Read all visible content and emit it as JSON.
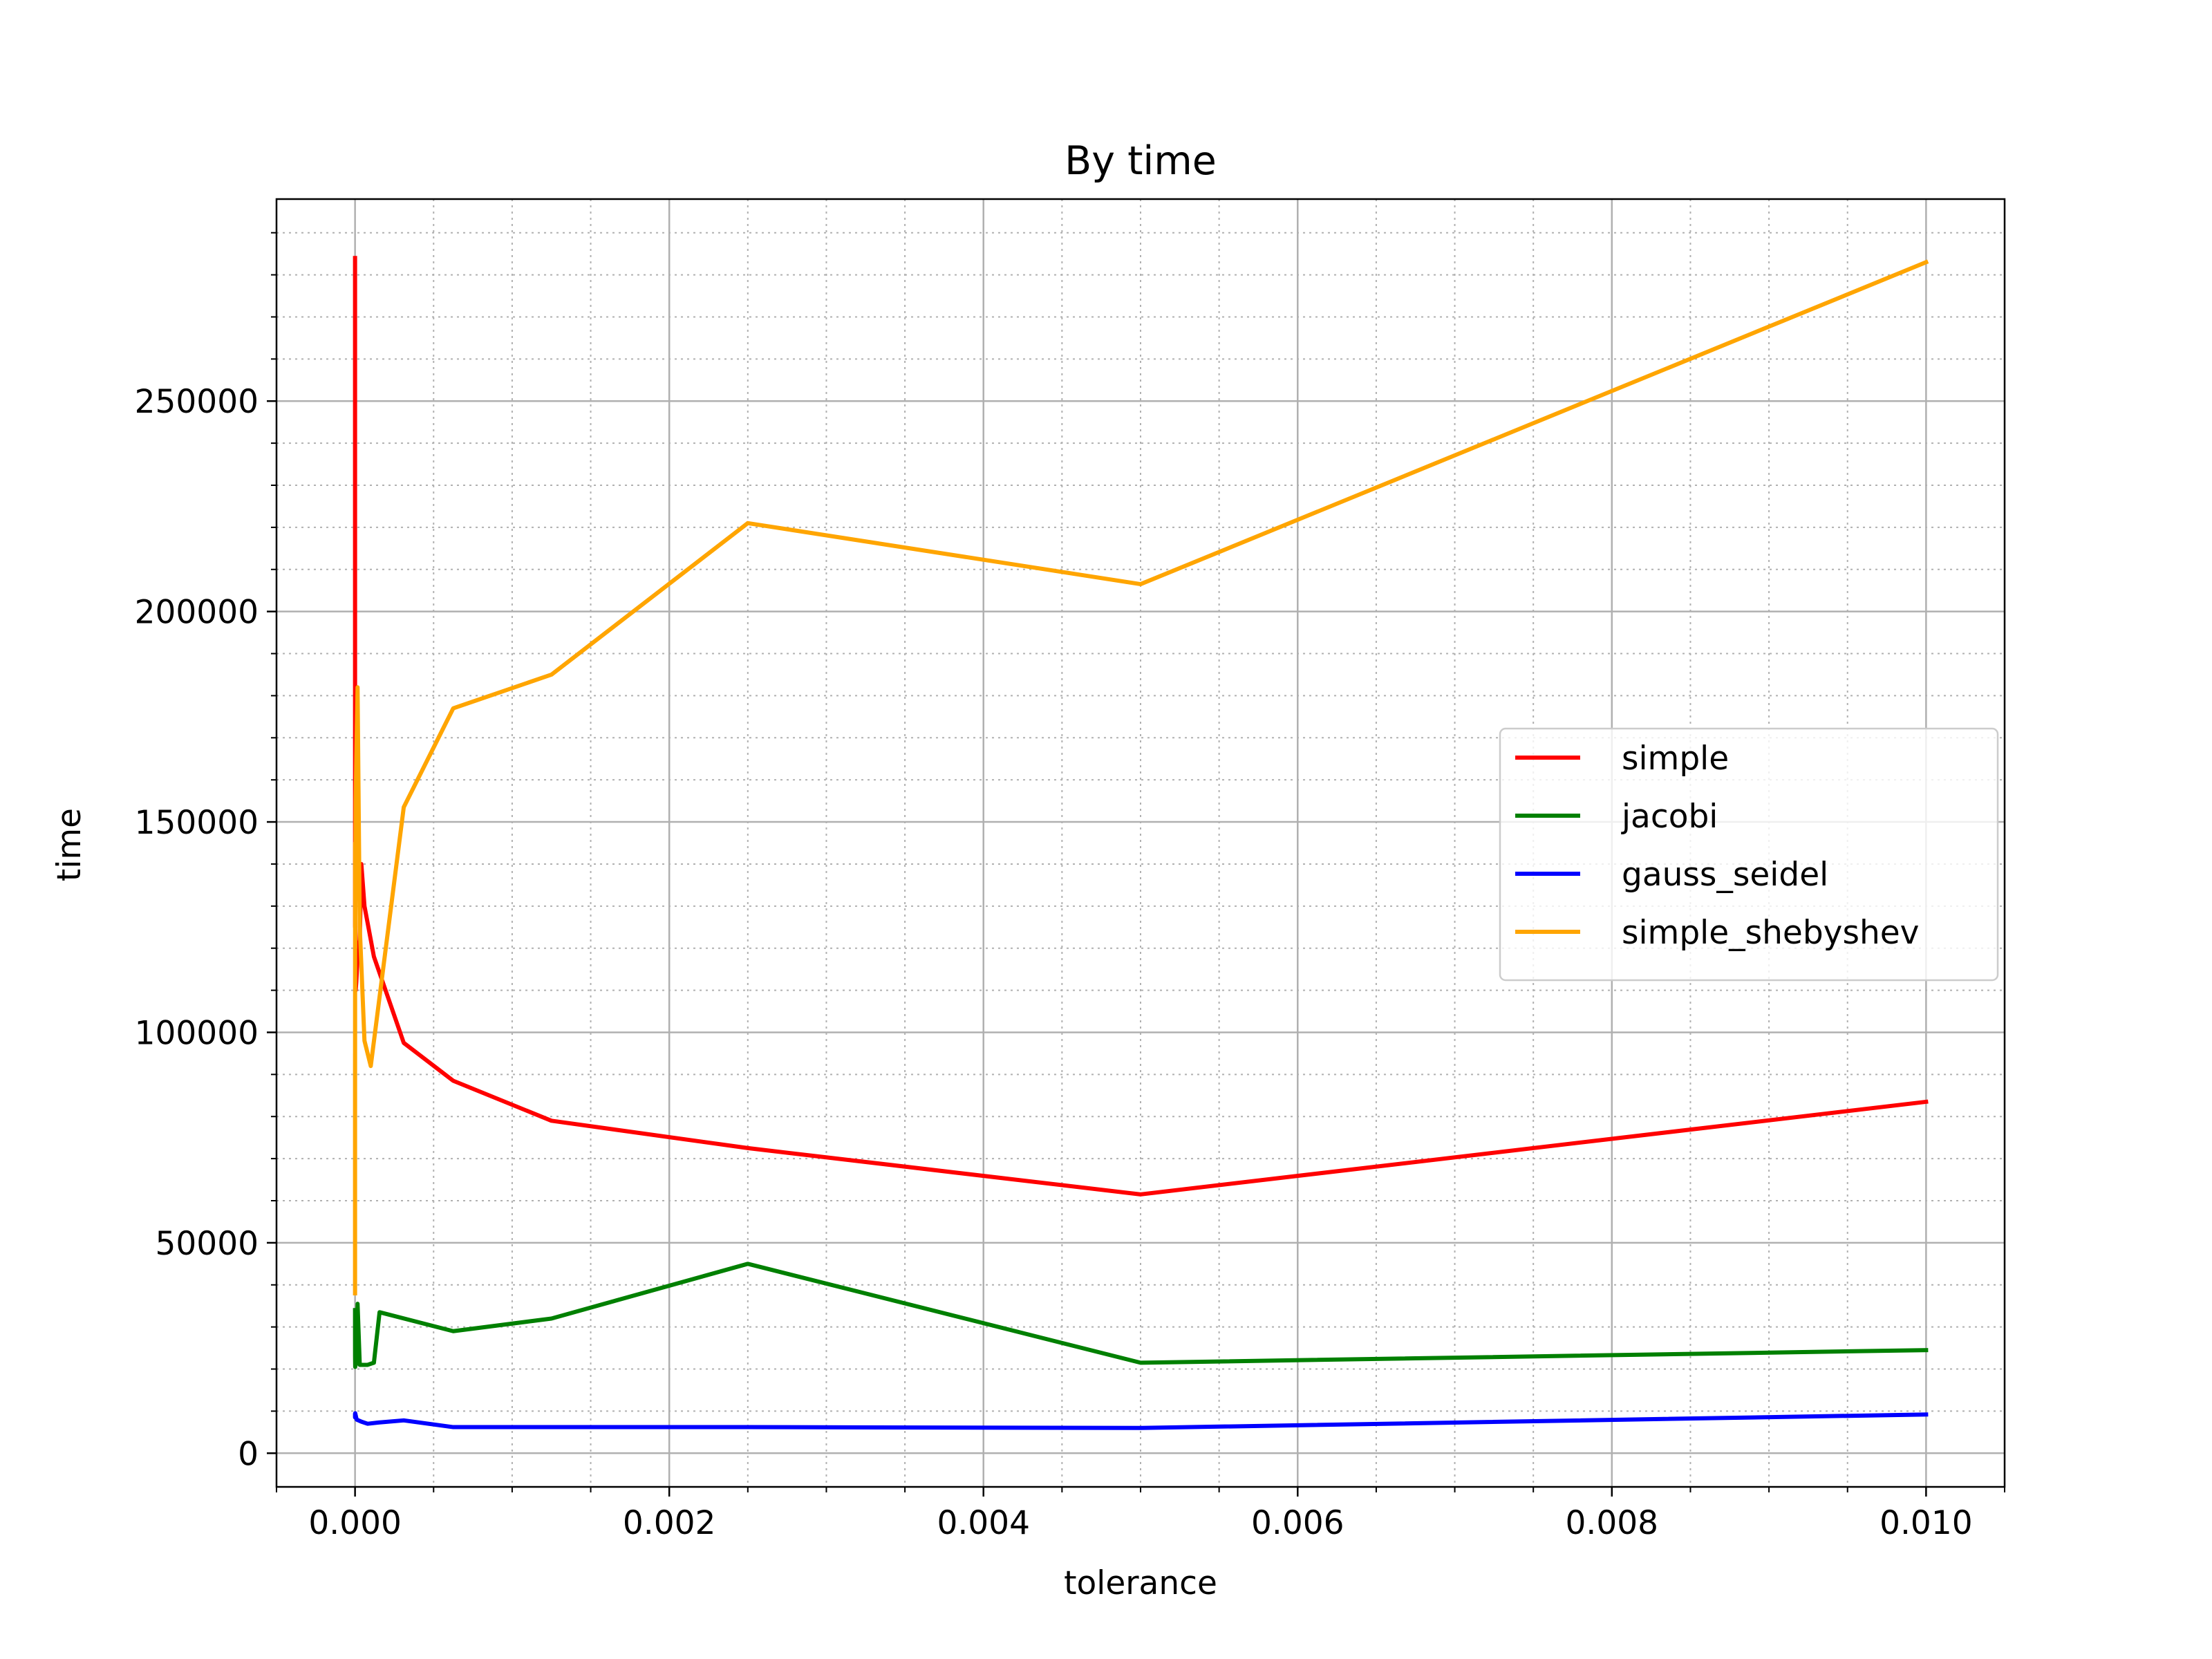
{
  "chart_data": {
    "type": "line",
    "title": "By time",
    "xlabel": "tolerance",
    "ylabel": "time",
    "xlim": [
      -0.0005,
      0.0105
    ],
    "ylim": [
      -8000,
      298000
    ],
    "x_ticks": [
      0.0,
      0.002,
      0.004,
      0.006,
      0.008,
      0.01
    ],
    "x_tick_labels": [
      "0.000",
      "0.002",
      "0.004",
      "0.006",
      "0.008",
      "0.010"
    ],
    "y_ticks": [
      0,
      50000,
      100000,
      150000,
      200000,
      250000
    ],
    "y_tick_labels": [
      "0",
      "50000",
      "100000",
      "150000",
      "200000",
      "250000"
    ],
    "grid": true,
    "minor_grid": true,
    "legend_position": "center-right",
    "series": [
      {
        "name": "simple",
        "color": "#ff0000",
        "points": [
          [
            1e-08,
            284000
          ],
          [
            2e-08,
            250000
          ],
          [
            4e-08,
            210000
          ],
          [
            8e-08,
            175000
          ],
          [
            2e-07,
            150000
          ],
          [
            5e-07,
            125000
          ],
          [
            1e-06,
            132000
          ],
          [
            4e-06,
            110000
          ],
          [
            8e-06,
            112000
          ],
          [
            1.6e-05,
            118000
          ],
          [
            3e-05,
            122000
          ],
          [
            4e-05,
            140000
          ],
          [
            6e-05,
            130000
          ],
          [
            0.00012,
            118000
          ],
          [
            0.00031,
            97500
          ],
          [
            0.000625,
            88500
          ],
          [
            0.00125,
            79000
          ],
          [
            0.0025,
            72500
          ],
          [
            0.005,
            61500
          ],
          [
            0.01,
            83500
          ]
        ]
      },
      {
        "name": "jacobi",
        "color": "#008000",
        "points": [
          [
            1e-08,
            34000
          ],
          [
            4e-08,
            28000
          ],
          [
            2e-07,
            23000
          ],
          [
            1e-06,
            20500
          ],
          [
            4e-06,
            21000
          ],
          [
            1.6e-05,
            35500
          ],
          [
            3e-05,
            21000
          ],
          [
            8e-05,
            21000
          ],
          [
            0.00012,
            21500
          ],
          [
            0.000156,
            33500
          ],
          [
            0.000625,
            29000
          ],
          [
            0.00125,
            32000
          ],
          [
            0.0025,
            45000
          ],
          [
            0.005,
            21500
          ],
          [
            0.01,
            24500
          ]
        ]
      },
      {
        "name": "gauss_seidel",
        "color": "#0000ff",
        "points": [
          [
            1e-08,
            9000
          ],
          [
            4e-08,
            8500
          ],
          [
            1e-06,
            9500
          ],
          [
            1e-05,
            8000
          ],
          [
            4e-05,
            7500
          ],
          [
            8e-05,
            7000
          ],
          [
            0.00015,
            7300
          ],
          [
            0.00031,
            7800
          ],
          [
            0.000625,
            6200
          ],
          [
            0.00125,
            6200
          ],
          [
            0.0025,
            6200
          ],
          [
            0.005,
            6000
          ],
          [
            0.01,
            9200
          ]
        ]
      },
      {
        "name": "simple_shebyshev",
        "color": "#ffa500",
        "points": [
          [
            1e-08,
            38000
          ],
          [
            2e-08,
            60000
          ],
          [
            4e-08,
            95000
          ],
          [
            1e-07,
            82000
          ],
          [
            5e-07,
            145000
          ],
          [
            1e-06,
            120000
          ],
          [
            4e-06,
            155000
          ],
          [
            8e-06,
            165000
          ],
          [
            1.6e-05,
            182000
          ],
          [
            3e-05,
            125000
          ],
          [
            6e-05,
            98000
          ],
          [
            0.0001,
            92000
          ],
          [
            0.00031,
            153500
          ],
          [
            0.000625,
            177000
          ],
          [
            0.00125,
            185000
          ],
          [
            0.0025,
            221000
          ],
          [
            0.005,
            206500
          ],
          [
            0.01,
            283000
          ]
        ]
      }
    ]
  }
}
